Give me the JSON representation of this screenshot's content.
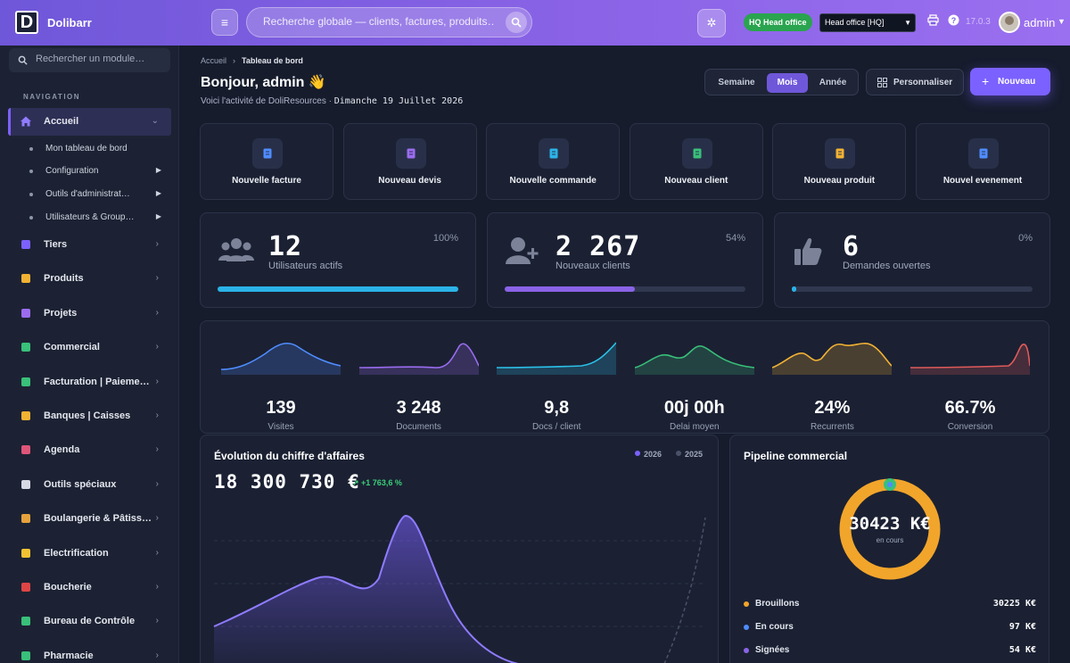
{
  "topbar": {
    "app_name": "Dolibarr",
    "logo_letter": "D",
    "search_placeholder": "Recherche globale — clients, factures, produits…",
    "entity_badge": "HQ Head office",
    "entity_select": "Head office [HQ]",
    "version": "17.0.3",
    "user": "admin"
  },
  "sidebar": {
    "search_placeholder": "Rechercher un module…",
    "heading": "NAVIGATION",
    "active": {
      "label": "Accueil",
      "icon": "home-icon"
    },
    "subitems": [
      {
        "label": "Mon tableau de bord",
        "has_arrow": false
      },
      {
        "label": "Configuration",
        "has_arrow": true
      },
      {
        "label": "Outils d'administrat…",
        "has_arrow": true
      },
      {
        "label": "Utilisateurs & Group…",
        "has_arrow": true
      }
    ],
    "items": [
      {
        "label": "Tiers",
        "icon": "building-icon",
        "color": "#7b61ff"
      },
      {
        "label": "Produits",
        "icon": "box-icon",
        "color": "#f2b233"
      },
      {
        "label": "Projets",
        "icon": "project-icon",
        "color": "#9b6cf0"
      },
      {
        "label": "Commercial",
        "icon": "briefcase-icon",
        "color": "#39c07a"
      },
      {
        "label": "Facturation | Paieme…",
        "icon": "invoice-icon",
        "color": "#39c07a"
      },
      {
        "label": "Banques | Caisses",
        "icon": "bank-icon",
        "color": "#f2b233"
      },
      {
        "label": "Agenda",
        "icon": "calendar-icon",
        "color": "#e0557a"
      },
      {
        "label": "Outils spéciaux",
        "icon": "tools-icon",
        "color": "#d5d9e4"
      },
      {
        "label": "Boulangerie & Pâtiss…",
        "icon": "bread-icon",
        "color": "#e6a23c"
      },
      {
        "label": "Electrification",
        "icon": "bolt-icon",
        "color": "#f2c233"
      },
      {
        "label": "Boucherie",
        "icon": "meat-icon",
        "color": "#e04545"
      },
      {
        "label": "Bureau de Contrôle",
        "icon": "shield-icon",
        "color": "#39c07a"
      },
      {
        "label": "Pharmacie",
        "icon": "pharmacy-icon",
        "color": "#39c07a"
      }
    ]
  },
  "header": {
    "breadcrumb_home": "Accueil",
    "breadcrumb_current": "Tableau de bord",
    "greeting": "Bonjour, admin 👋",
    "subline": "Voici l'activité de DoliResources · ",
    "date": "Dimanche 19 Juillet 2026",
    "periods": [
      "Semaine",
      "Mois",
      "Année"
    ],
    "active_period": "Mois",
    "customize": "Personnaliser",
    "new": "Nouveau"
  },
  "quick_actions": [
    {
      "label": "Nouvelle facture",
      "icon": "invoice-icon",
      "color": "#4f8cff"
    },
    {
      "label": "Nouveau devis",
      "icon": "quote-icon",
      "color": "#9b6cf0"
    },
    {
      "label": "Nouvelle commande",
      "icon": "cart-icon",
      "color": "#2bb3e8"
    },
    {
      "label": "Nouveau client",
      "icon": "client-icon",
      "color": "#39c07a"
    },
    {
      "label": "Nouveau produit",
      "icon": "package-icon",
      "color": "#f2b233"
    },
    {
      "label": "Nouvel evenement",
      "icon": "calendar-icon",
      "color": "#4f8cff"
    }
  ],
  "kpis": [
    {
      "value": "12",
      "label": "Utilisateurs actifs",
      "percent": "100%",
      "progress": 1.0,
      "icon": "users-icon",
      "color": "#2bb3e8"
    },
    {
      "value": "2 267",
      "label": "Nouveaux clients",
      "percent": "54%",
      "progress": 0.54,
      "icon": "user-plus-icon",
      "color": "#8a63e6"
    },
    {
      "value": "6",
      "label": "Demandes ouvertes",
      "percent": "0%",
      "progress": 0.0,
      "icon": "thumbs-up-icon",
      "color": "#2bb3e8"
    }
  ],
  "sparks": [
    {
      "value": "139",
      "label": "Visites",
      "color": "#4f8cff"
    },
    {
      "value": "3 248",
      "label": "Documents",
      "color": "#9b6cf0"
    },
    {
      "value": "9,8",
      "label": "Docs / client",
      "color": "#2bc0e8"
    },
    {
      "value": "00j 00h",
      "label": "Delai moyen",
      "color": "#39c07a"
    },
    {
      "value": "24%",
      "label": "Recurrents",
      "color": "#f2b233"
    },
    {
      "value": "66.7%",
      "label": "Conversion",
      "color": "#e05a5a"
    }
  ],
  "revenue": {
    "title": "Évolution du chiffre d'affaires",
    "total": "18 300 730 €",
    "growth": "↗ +1 763,6 %",
    "legend": [
      {
        "name": "2026",
        "color": "#7b61ff"
      },
      {
        "name": "2025",
        "color": "#4a5168"
      }
    ]
  },
  "pipeline": {
    "title": "Pipeline commercial",
    "total": "30423 K€",
    "sublabel": "en cours",
    "rows": [
      {
        "name": "Brouillons",
        "value": "30225 K€",
        "color": "#f2a52b"
      },
      {
        "name": "En cours",
        "value": "97 K€",
        "color": "#4f8cff"
      },
      {
        "name": "Signées",
        "value": "54 K€",
        "color": "#8a63e6"
      }
    ]
  }
}
